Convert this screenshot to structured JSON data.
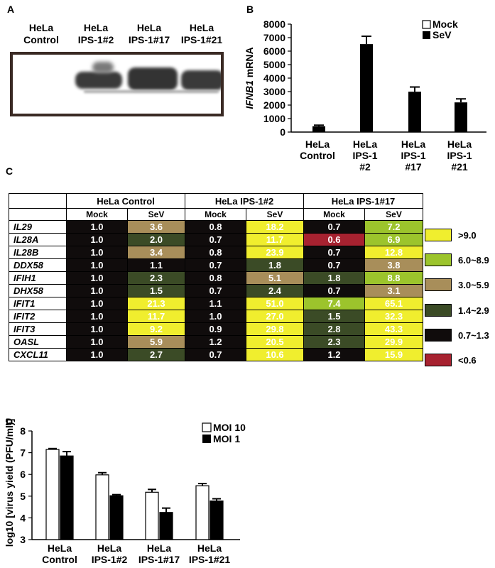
{
  "panels": {
    "a": "A",
    "b": "B",
    "c": "C",
    "d": "D"
  },
  "western_blot": {
    "lanes": [
      {
        "line1": "HeLa",
        "line2": "Control"
      },
      {
        "line1": "HeLa",
        "line2": "IPS-1#2"
      },
      {
        "line1": "HeLa",
        "line2": "IPS-1#17"
      },
      {
        "line1": "HeLa",
        "line2": "IPS-1#21"
      }
    ]
  },
  "chart_data": [
    {
      "type": "bar",
      "panel": "B",
      "ylabel_italic": "IFNB1",
      "ylabel_rest": " mRNA",
      "ylim": [
        0,
        8000
      ],
      "yticks": [
        "0",
        "1000",
        "2000",
        "3000",
        "4000",
        "5000",
        "6000",
        "7000",
        "8000"
      ],
      "categories": [
        [
          "HeLa",
          "Control"
        ],
        [
          "HeLa",
          "IPS-1",
          "#2"
        ],
        [
          "HeLa",
          "IPS-1",
          "#17"
        ],
        [
          "HeLa",
          "IPS-1",
          "#21"
        ]
      ],
      "series": [
        {
          "name": "Mock",
          "color": "#ffffff",
          "values": [
            0,
            0,
            0,
            0
          ],
          "errors": [
            0,
            0,
            0,
            0
          ]
        },
        {
          "name": "SeV",
          "color": "#000000",
          "values": [
            430,
            6520,
            2990,
            2200
          ],
          "errors": [
            80,
            580,
            350,
            260
          ]
        }
      ],
      "legend": "top-right"
    },
    {
      "type": "bar",
      "panel": "D",
      "ylabel": "log10 [virus yield (PFU/ml)]",
      "ylim": [
        3,
        8
      ],
      "yticks": [
        "3",
        "4",
        "5",
        "6",
        "7",
        "8"
      ],
      "categories": [
        [
          "HeLa",
          "Control"
        ],
        [
          "HeLa",
          "IPS-1#2"
        ],
        [
          "HeLa",
          "IPS-1#17"
        ],
        [
          "HeLa",
          "IPS-1#21"
        ]
      ],
      "series": [
        {
          "name": "MOI 10",
          "color": "#ffffff",
          "values": [
            7.15,
            5.98,
            5.18,
            5.48
          ],
          "errors": [
            0.04,
            0.1,
            0.13,
            0.1
          ]
        },
        {
          "name": "MOI 1",
          "color": "#000000",
          "values": [
            6.85,
            5.02,
            4.25,
            4.78
          ],
          "errors": [
            0.2,
            0.05,
            0.2,
            0.1
          ]
        }
      ],
      "legend": "top-right"
    },
    {
      "type": "heatmap",
      "panel": "C",
      "groups": [
        "HeLa Control",
        "HeLa IPS-1#2",
        "HeLa IPS-1#17"
      ],
      "conditions": [
        "Mock",
        "SeV",
        "Mock",
        "SeV",
        "Mock",
        "SeV"
      ],
      "rows": [
        {
          "gene": "IL29",
          "values": [
            "1.0",
            "3.6",
            "0.8",
            "18.2",
            "0.7",
            "7.2"
          ]
        },
        {
          "gene": "IL28A",
          "values": [
            "1.0",
            "2.0",
            "0.7",
            "11.7",
            "0.6",
            "6.9"
          ]
        },
        {
          "gene": "IL28B",
          "values": [
            "1.0",
            "3.4",
            "0.8",
            "23.9",
            "0.7",
            "12.8"
          ]
        },
        {
          "gene": "DDX58",
          "values": [
            "1.0",
            "1.1",
            "0.7",
            "1.8",
            "0.7",
            "3.8"
          ]
        },
        {
          "gene": "IFIH1",
          "values": [
            "1.0",
            "2.3",
            "0.8",
            "5.1",
            "1.8",
            "8.8"
          ]
        },
        {
          "gene": "DHX58",
          "values": [
            "1.0",
            "1.5",
            "0.7",
            "2.4",
            "0.7",
            "3.1"
          ]
        },
        {
          "gene": "IFIT1",
          "values": [
            "1.0",
            "21.3",
            "1.1",
            "51.0",
            "7.4",
            "65.1"
          ]
        },
        {
          "gene": "IFIT2",
          "values": [
            "1.0",
            "11.7",
            "1.0",
            "27.0",
            "1.5",
            "32.3"
          ]
        },
        {
          "gene": "IFIT3",
          "values": [
            "1.0",
            "9.2",
            "0.9",
            "29.8",
            "2.8",
            "43.3"
          ]
        },
        {
          "gene": "OASL",
          "values": [
            "1.0",
            "5.9",
            "1.2",
            "20.5",
            "2.3",
            "29.9"
          ]
        },
        {
          "gene": "CXCL11",
          "values": [
            "1.0",
            "2.7",
            "0.7",
            "10.6",
            "1.2",
            "15.9"
          ]
        }
      ],
      "legend": [
        {
          "label": ">9.0",
          "color": "#f0ee2e"
        },
        {
          "label": "6.0~8.9",
          "color": "#9cc42c"
        },
        {
          "label": "3.0~5.9",
          "color": "#a88e5a"
        },
        {
          "label": "1.4~2.9",
          "color": "#3b4b26"
        },
        {
          "label": "0.7~1.3",
          "color": "#100c0c"
        },
        {
          "label": "<0.6",
          "color": "#a72230"
        }
      ]
    }
  ]
}
